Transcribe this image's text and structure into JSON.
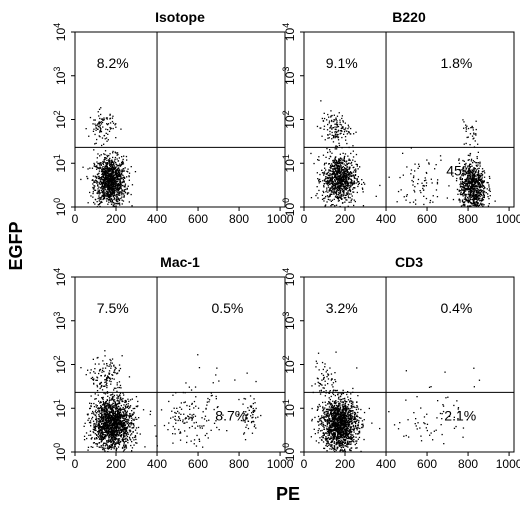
{
  "figure": {
    "x_axis_title": "PE",
    "y_axis_title": "EGFP"
  },
  "chart_data": [
    {
      "type": "scatter",
      "title": "Isotope",
      "xlabel": "PE",
      "ylabel": "EGFP",
      "xlim": [
        0,
        1024
      ],
      "ylim_log10": [
        0,
        4
      ],
      "y_scale": "log",
      "x_ticks": [
        "0",
        "200",
        "400",
        "600",
        "800",
        "1000"
      ],
      "y_ticks": [
        "10^0",
        "10^1",
        "10^2",
        "10^3",
        "10^4"
      ],
      "quadrant_gate": {
        "x": 400,
        "y": 23
      },
      "quadrant_percentages": {
        "upper_left": "8.2%",
        "upper_right": "",
        "lower_right": ""
      },
      "populations": [
        {
          "region": "lower-left",
          "x_center": 170,
          "x_spread": 70,
          "log10_center": 0.6,
          "log10_spread": 0.28,
          "count": 1100
        },
        {
          "region": "upper-left",
          "x_center": 130,
          "x_spread": 60,
          "log10_center": 1.85,
          "log10_spread": 0.18,
          "count": 95
        }
      ]
    },
    {
      "type": "scatter",
      "title": "B220",
      "xlabel": "PE",
      "ylabel": "EGFP",
      "xlim": [
        0,
        1024
      ],
      "ylim_log10": [
        0,
        4
      ],
      "y_scale": "log",
      "x_ticks": [
        "0",
        "200",
        "400",
        "600",
        "800",
        "1000"
      ],
      "y_ticks": [
        "10^0",
        "10^1",
        "10^2",
        "10^3",
        "10^4"
      ],
      "quadrant_gate": {
        "x": 400,
        "y": 23
      },
      "quadrant_percentages": {
        "upper_left": "9.1%",
        "upper_right": "1.8%",
        "lower_right": "45%"
      },
      "populations": [
        {
          "region": "lower-left",
          "x_center": 170,
          "x_spread": 75,
          "log10_center": 0.65,
          "log10_spread": 0.28,
          "count": 850
        },
        {
          "region": "upper-left",
          "x_center": 150,
          "x_spread": 65,
          "log10_center": 1.8,
          "log10_spread": 0.18,
          "count": 130
        },
        {
          "region": "lower-right",
          "x_center": 820,
          "x_spread": 60,
          "log10_center": 0.45,
          "log10_spread": 0.3,
          "count": 750
        },
        {
          "region": "upper-right",
          "x_center": 810,
          "x_spread": 40,
          "log10_center": 1.75,
          "log10_spread": 0.2,
          "count": 30
        },
        {
          "region": "mid-scatter",
          "x_center": 560,
          "x_spread": 140,
          "log10_center": 0.6,
          "log10_spread": 0.3,
          "count": 80
        }
      ]
    },
    {
      "type": "scatter",
      "title": "Mac-1",
      "xlabel": "PE",
      "ylabel": "EGFP",
      "xlim": [
        0,
        1024
      ],
      "ylim_log10": [
        0,
        4
      ],
      "y_scale": "log",
      "x_ticks": [
        "0",
        "200",
        "400",
        "600",
        "800",
        "1000"
      ],
      "y_ticks": [
        "10^0",
        "10^1",
        "10^2",
        "10^3",
        "10^4"
      ],
      "quadrant_gate": {
        "x": 400,
        "y": 23
      },
      "quadrant_percentages": {
        "upper_left": "7.5%",
        "upper_right": "0.5%",
        "lower_right": "8.7%"
      },
      "populations": [
        {
          "region": "lower-left",
          "x_center": 180,
          "x_spread": 90,
          "log10_center": 0.65,
          "log10_spread": 0.3,
          "count": 1500
        },
        {
          "region": "upper-left",
          "x_center": 150,
          "x_spread": 75,
          "log10_center": 1.75,
          "log10_spread": 0.22,
          "count": 130
        },
        {
          "region": "lower-right",
          "x_center": 560,
          "x_spread": 140,
          "log10_center": 0.75,
          "log10_spread": 0.3,
          "count": 140
        },
        {
          "region": "lower-right",
          "x_center": 850,
          "x_spread": 45,
          "log10_center": 0.8,
          "log10_spread": 0.25,
          "count": 60
        },
        {
          "region": "upper-right",
          "x_center": 700,
          "x_spread": 180,
          "log10_center": 1.8,
          "log10_spread": 0.25,
          "count": 10
        }
      ]
    },
    {
      "type": "scatter",
      "title": "CD3",
      "xlabel": "PE",
      "ylabel": "EGFP",
      "xlim": [
        0,
        1024
      ],
      "ylim_log10": [
        0,
        4
      ],
      "y_scale": "log",
      "x_ticks": [
        "0",
        "200",
        "400",
        "600",
        "800",
        "1000"
      ],
      "y_ticks": [
        "10^0",
        "10^1",
        "10^2",
        "10^3",
        "10^4"
      ],
      "quadrant_gate": {
        "x": 400,
        "y": 23
      },
      "quadrant_percentages": {
        "upper_left": "3.2%",
        "upper_right": "0.4%",
        "lower_right": "2.1%"
      },
      "populations": [
        {
          "region": "lower-left",
          "x_center": 170,
          "x_spread": 80,
          "log10_center": 0.65,
          "log10_spread": 0.3,
          "count": 1400
        },
        {
          "region": "upper-left",
          "x_center": 100,
          "x_spread": 50,
          "log10_center": 1.7,
          "log10_spread": 0.25,
          "count": 60
        },
        {
          "region": "lower-right",
          "x_center": 620,
          "x_spread": 170,
          "log10_center": 0.75,
          "log10_spread": 0.3,
          "count": 60
        },
        {
          "region": "upper-right",
          "x_center": 700,
          "x_spread": 160,
          "log10_center": 1.7,
          "log10_spread": 0.2,
          "count": 6
        }
      ]
    }
  ]
}
